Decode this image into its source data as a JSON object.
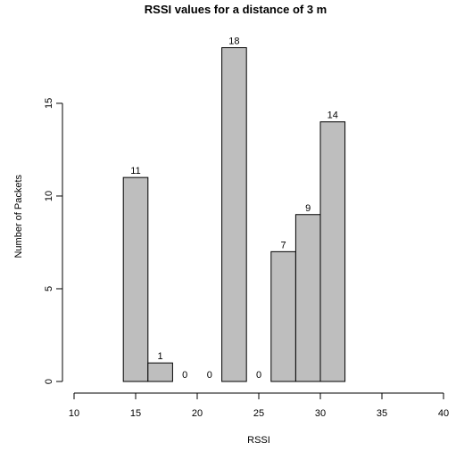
{
  "chart_data": {
    "type": "bar",
    "title": "RSSI values for a distance of 3 m",
    "xlabel": "RSSI",
    "ylabel": "Number of Packets",
    "xlim": [
      10,
      40
    ],
    "ylim": [
      0,
      18
    ],
    "x_ticks": [
      10,
      15,
      20,
      25,
      30,
      35,
      40
    ],
    "y_ticks": [
      0,
      5,
      10,
      15
    ],
    "grid": false,
    "legend": "none",
    "bar_color": "#bebebe",
    "bins": [
      {
        "x0": 14,
        "x1": 16,
        "value": 11
      },
      {
        "x0": 16,
        "x1": 18,
        "value": 1
      },
      {
        "x0": 18,
        "x1": 20,
        "value": 0
      },
      {
        "x0": 20,
        "x1": 22,
        "value": 0
      },
      {
        "x0": 22,
        "x1": 24,
        "value": 18
      },
      {
        "x0": 24,
        "x1": 26,
        "value": 0
      },
      {
        "x0": 26,
        "x1": 28,
        "value": 7
      },
      {
        "x0": 28,
        "x1": 30,
        "value": 9
      },
      {
        "x0": 30,
        "x1": 32,
        "value": 14
      }
    ]
  }
}
